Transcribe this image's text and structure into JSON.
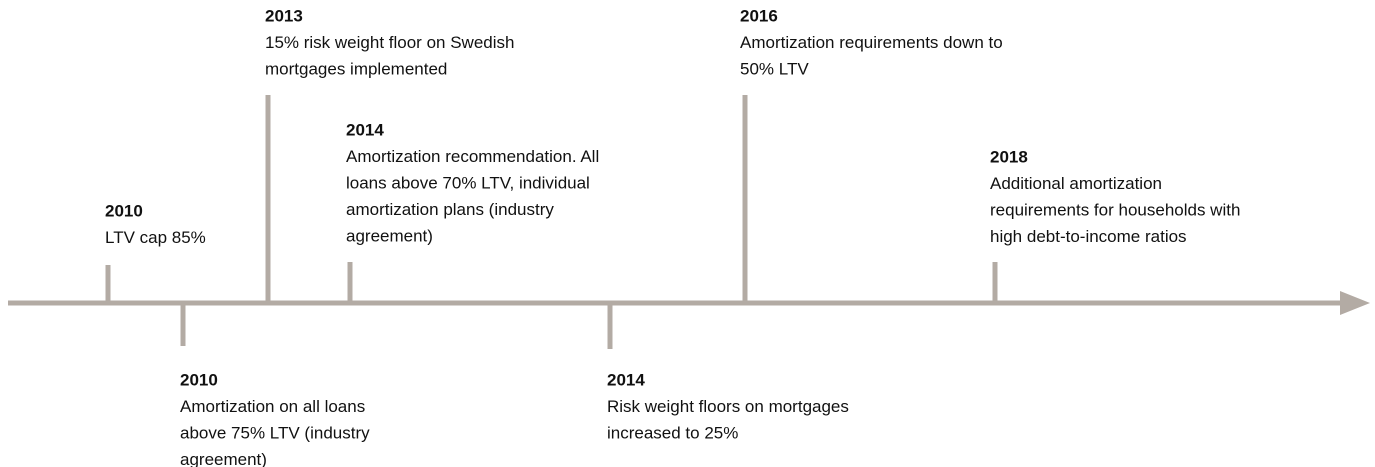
{
  "events": [
    {
      "year": "2010",
      "lines": [
        "LTV cap 85%"
      ]
    },
    {
      "year": "2010",
      "lines": [
        "Amortization on all loans",
        "above 75% LTV (industry",
        "agreement)"
      ]
    },
    {
      "year": "2013",
      "lines": [
        "15% risk weight floor on Swedish",
        "mortgages implemented"
      ]
    },
    {
      "year": "2014",
      "lines": [
        "Amortization recommendation. All",
        "loans above 70% LTV, individual",
        "amortization plans (industry",
        "agreement)"
      ]
    },
    {
      "year": "2014",
      "lines": [
        "Risk weight floors on mortgages",
        "increased to 25%"
      ]
    },
    {
      "year": "2016",
      "lines": [
        "Amortization requirements down to",
        "50% LTV"
      ]
    },
    {
      "year": "2018",
      "lines": [
        "Additional amortization",
        "requirements for households with",
        "high debt-to-income ratios"
      ]
    }
  ]
}
